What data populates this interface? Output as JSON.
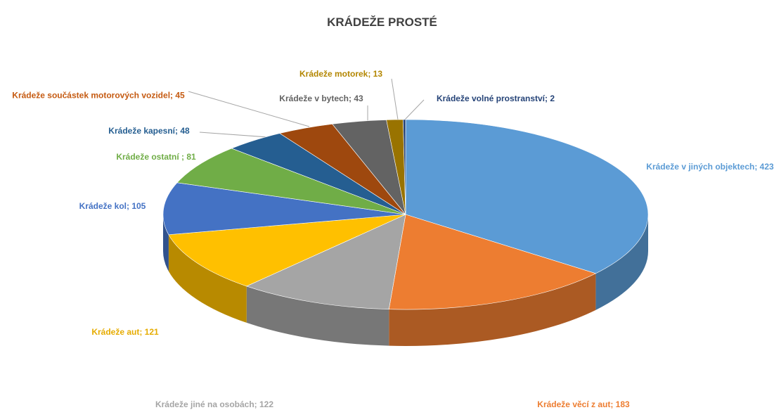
{
  "chart_data": {
    "type": "pie",
    "title": "KRÁDEŽE PROSTÉ",
    "labels": [
      "Krádeže v jiných objektech; 423",
      "Krádeže věcí z aut; 183",
      "Krádeže jiné na osobách; 122",
      "Krádeže aut; 121",
      "Krádeže kol; 105",
      "Krádeže ostatní ; 81",
      "Krádeže kapesní; 48",
      "Krádeže součástek motorových vozidel; 45",
      "Krádeže v bytech; 43",
      "Krádeže motorek; 13",
      "Krádeže volné prostranství; 2"
    ],
    "values": [
      423,
      183,
      122,
      121,
      105,
      81,
      48,
      45,
      43,
      13,
      2
    ],
    "colors": [
      "#5b9bd5",
      "#ed7d31",
      "#a5a5a5",
      "#ffc000",
      "#4472c4",
      "#70ad47",
      "#255e91",
      "#9e480e",
      "#636363",
      "#997300",
      "#264478"
    ],
    "label_colors": [
      "#5b9bd5",
      "#ed7d31",
      "#a5a5a5",
      "#e6ac00",
      "#4472c4",
      "#70ad47",
      "#255e91",
      "#c55a11",
      "#636363",
      "#b38600",
      "#264478"
    ]
  }
}
